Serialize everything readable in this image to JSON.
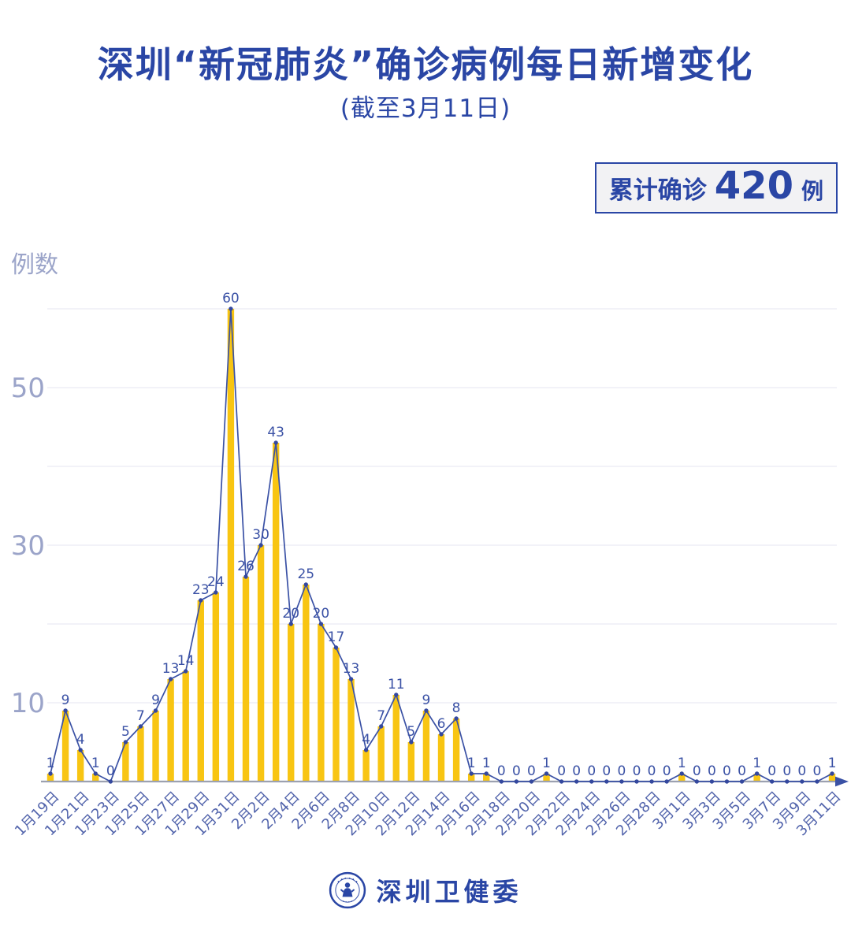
{
  "page": {
    "title": "深圳“新冠肺炎”确诊病例每日新增变化",
    "subtitle": "(截至3月11日)"
  },
  "badge": {
    "prefix": "累计确诊",
    "value": "420",
    "suffix": "例"
  },
  "footer": {
    "org": "深圳卫健委",
    "logo": "shenzhen-health-commission-emblem"
  },
  "chart_data": {
    "type": "bar",
    "overlay": "line",
    "title": "深圳“新冠肺炎”确诊病例每日新增变化",
    "ylabel": "例数",
    "xlabel": "",
    "ylim": [
      0,
      60
    ],
    "grid": true,
    "y_gridlines": [
      10,
      20,
      30,
      40,
      50,
      60
    ],
    "y_tick_labels": [
      10,
      30,
      50
    ],
    "categories": [
      "1月19日",
      "1月20日",
      "1月21日",
      "1月22日",
      "1月23日",
      "1月24日",
      "1月25日",
      "1月26日",
      "1月27日",
      "1月28日",
      "1月29日",
      "1月30日",
      "1月31日",
      "2月1日",
      "2月2日",
      "2月3日",
      "2月4日",
      "2月5日",
      "2月6日",
      "2月7日",
      "2月8日",
      "2月9日",
      "2月10日",
      "2月11日",
      "2月12日",
      "2月13日",
      "2月14日",
      "2月15日",
      "2月16日",
      "2月17日",
      "2月18日",
      "2月19日",
      "2月20日",
      "2月21日",
      "2月22日",
      "2月23日",
      "2月24日",
      "2月25日",
      "2月26日",
      "2月27日",
      "2月28日",
      "2月29日",
      "3月1日",
      "3月2日",
      "3月3日",
      "3月4日",
      "3月5日",
      "3月6日",
      "3月7日",
      "3月8日",
      "3月9日",
      "3月10日",
      "3月11日"
    ],
    "values": [
      1,
      9,
      4,
      1,
      0,
      5,
      7,
      9,
      13,
      14,
      23,
      24,
      60,
      26,
      30,
      43,
      20,
      25,
      20,
      17,
      13,
      4,
      7,
      11,
      5,
      9,
      6,
      8,
      1,
      1,
      0,
      0,
      0,
      1,
      0,
      0,
      0,
      0,
      0,
      0,
      0,
      0,
      1,
      0,
      0,
      0,
      0,
      1,
      0,
      0,
      0,
      0,
      1
    ],
    "x_tick_labels": [
      "1月19日",
      "1月21日",
      "1月23日",
      "1月25日",
      "1月27日",
      "1月29日",
      "1月31日",
      "2月2日",
      "2月4日",
      "2月6日",
      "2月8日",
      "2月10日",
      "2月12日",
      "2月14日",
      "2月16日",
      "2月18日",
      "2月20日",
      "2月22日",
      "2月24日",
      "2月26日",
      "2月28日",
      "3月1日",
      "3月3日",
      "3月5日",
      "3月7日",
      "3月9日",
      "3月11日"
    ],
    "total": 420,
    "colors": {
      "bar": "#F8C512",
      "line": "#3A51A5",
      "point": "#34489E",
      "value_label": "#3A51A5",
      "x_tick": "#5163AB",
      "y_tick": "#9BA4C9",
      "gridline": "#E4E5F0",
      "axis": "#9CA1B0",
      "accent": "#2A46A5",
      "badge_bg": "#F2F2F4"
    }
  }
}
